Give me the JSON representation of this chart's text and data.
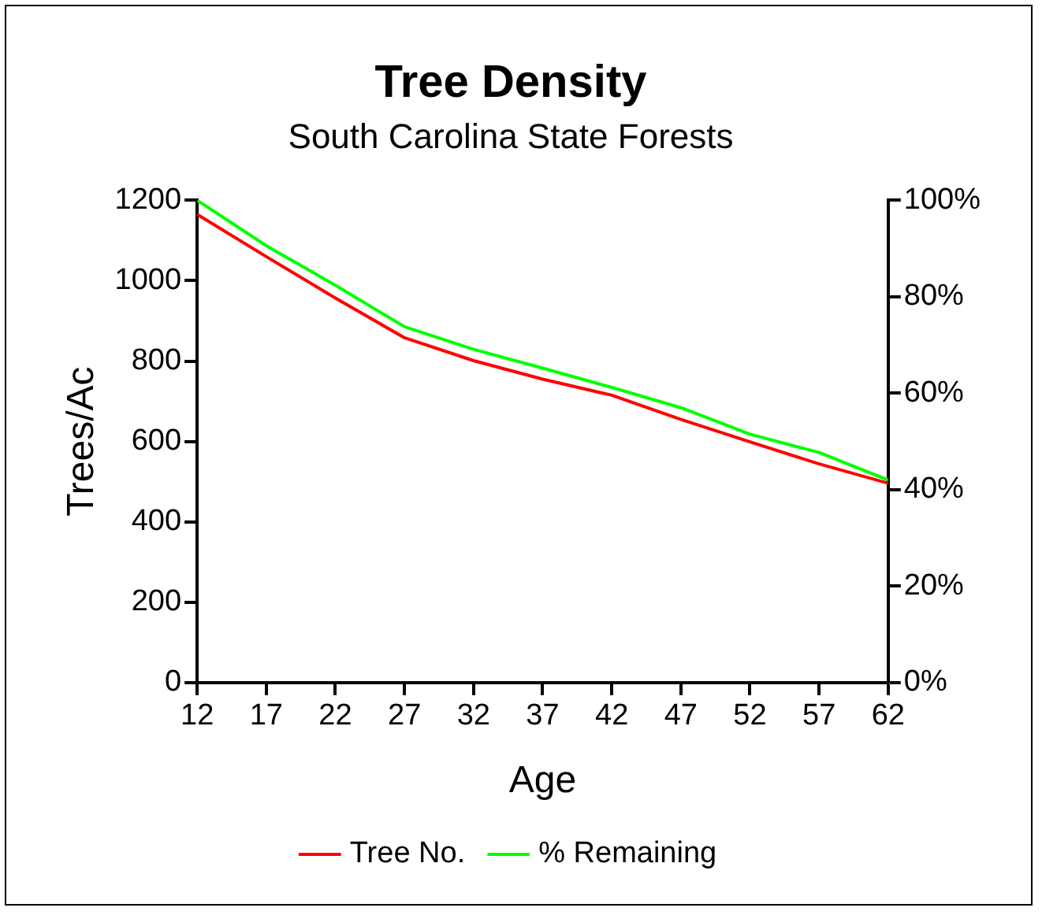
{
  "chart_data": {
    "type": "line",
    "title": "Tree Density",
    "subtitle": "South Carolina State Forests",
    "xlabel": "Age",
    "ylabel": "Trees/Ac",
    "x": [
      12,
      17,
      22,
      27,
      32,
      37,
      42,
      47,
      52,
      57,
      62
    ],
    "xlim": [
      12,
      62
    ],
    "xticks": [
      12,
      17,
      22,
      27,
      32,
      37,
      42,
      47,
      52,
      57,
      62
    ],
    "ylim": [
      0,
      1200
    ],
    "yticks": [
      0,
      200,
      400,
      600,
      800,
      1000,
      1200
    ],
    "y2lim": [
      0,
      100
    ],
    "y2ticks": [
      {
        "value": 0,
        "label": "0%"
      },
      {
        "value": 20,
        "label": "20%"
      },
      {
        "value": 40,
        "label": "40%"
      },
      {
        "value": 60,
        "label": "60%"
      },
      {
        "value": 80,
        "label": "80%"
      },
      {
        "value": 100,
        "label": "100%"
      }
    ],
    "series": [
      {
        "name": "Tree No.",
        "color": "#ff0000",
        "values": [
          1165,
          1060,
          957,
          858,
          801,
          755,
          715,
          655,
          599,
          544,
          496
        ]
      },
      {
        "name": "% Remaining",
        "color": "#00ff00",
        "axis": "y2",
        "values": [
          100,
          90.6,
          82.4,
          73.8,
          69.1,
          65.2,
          61.2,
          57.0,
          51.5,
          47.7,
          42.0
        ]
      }
    ],
    "grid": false,
    "legend": "bottom",
    "marker": "none",
    "line_style": "solid"
  }
}
